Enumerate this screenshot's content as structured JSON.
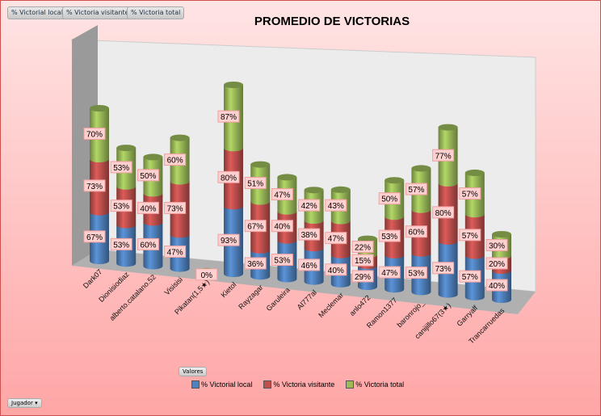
{
  "field_buttons": [
    "% Victorial local",
    "% Victoria visitante",
    "% Victoria total"
  ],
  "values_button": "Valores",
  "axis_button": "Jugador",
  "chart_data": {
    "type": "bar",
    "subtype": "3d-stacked-cylinder",
    "title": "PROMEDIO DE VICTORIAS",
    "categories": [
      "Dark07",
      "Dionisiodiaz",
      "alberto.catalano.52",
      "Visisisi",
      "Pikatan(1,5★)",
      "Kietol",
      "Rayzagar",
      "Garuleira",
      "Al777al",
      "Meclemar",
      "anlo472",
      "Ramon1377",
      "baronrojo_",
      "canijillo67(3★)",
      "Garryalf",
      "Trancarruedas"
    ],
    "series": [
      {
        "name": "% Victorial local",
        "color": "#4f81bd",
        "values": [
          67,
          53,
          60,
          47,
          0,
          93,
          36,
          53,
          46,
          40,
          29,
          47,
          53,
          73,
          57,
          40
        ]
      },
      {
        "name": "% Victoria visitante",
        "color": "#c0504d",
        "values": [
          73,
          53,
          40,
          73,
          0,
          80,
          67,
          40,
          38,
          47,
          15,
          53,
          60,
          80,
          57,
          20
        ]
      },
      {
        "name": "% Victoria total",
        "color": "#9bbb59",
        "values": [
          70,
          53,
          50,
          60,
          0,
          87,
          51,
          47,
          42,
          43,
          22,
          50,
          57,
          77,
          57,
          30
        ]
      }
    ],
    "value_suffix": "%",
    "legend_position": "bottom"
  }
}
